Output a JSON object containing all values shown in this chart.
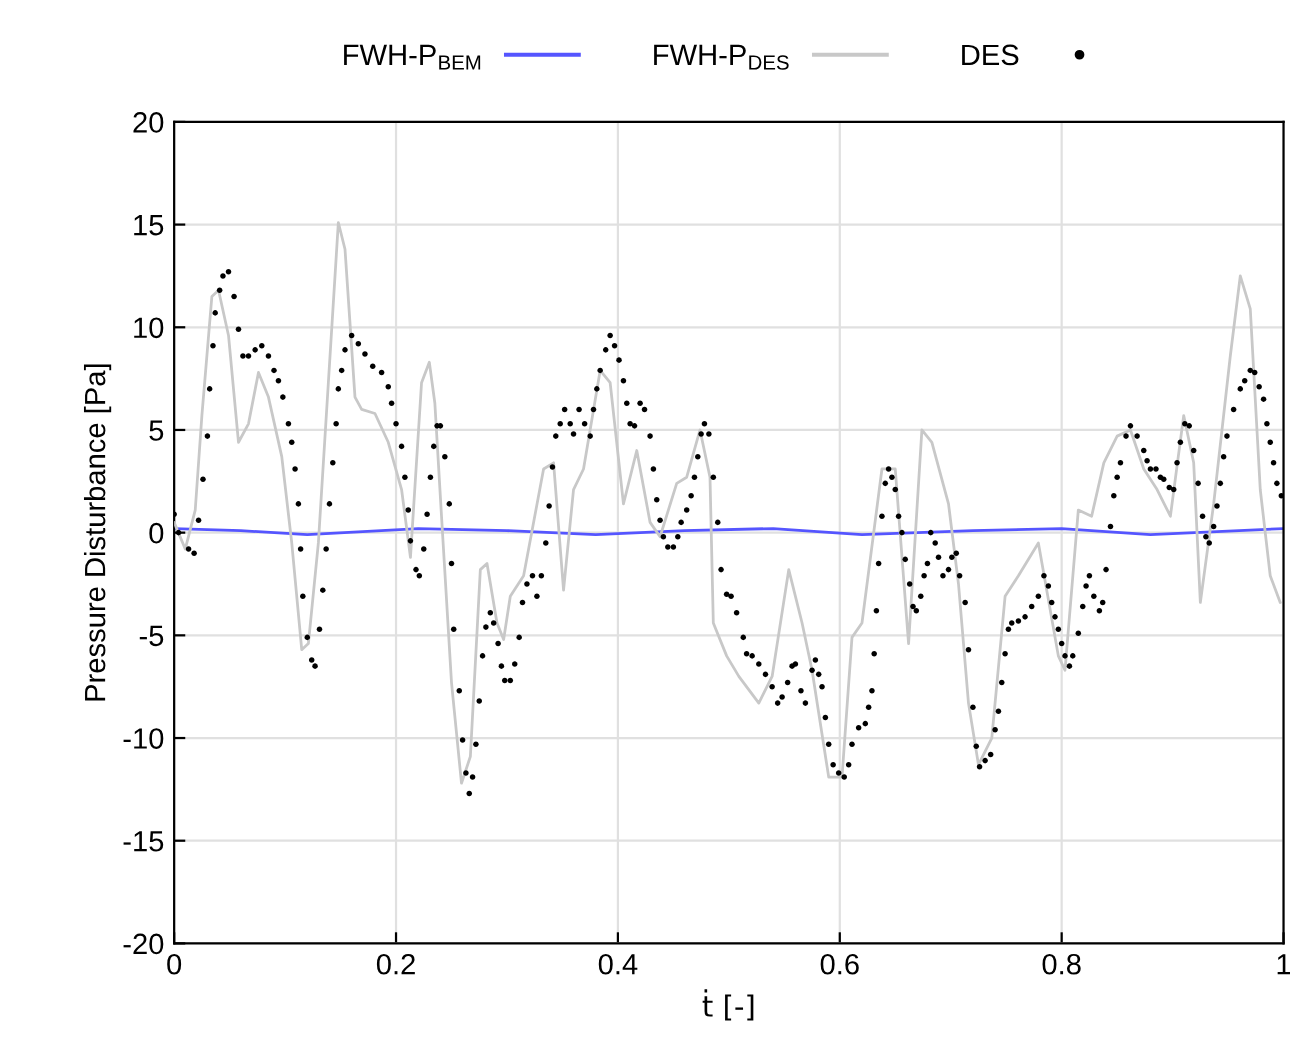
{
  "chart_data": {
    "type": "line",
    "xlabel": "ṫ [-]",
    "ylabel": "Pressure Disturbance [Pa]",
    "xlim": [
      0,
      1
    ],
    "xticks": [
      0,
      0.2,
      0.4,
      0.6,
      0.8,
      1
    ],
    "ylim": [
      -20,
      20
    ],
    "yticks": [
      -20,
      -15,
      -10,
      -5,
      0,
      5,
      10,
      15,
      20
    ],
    "grid": true,
    "legend": "top",
    "series": [
      {
        "name": "FWH-P$_{BEM}$",
        "color": "#5555ff",
        "line_style": "solid",
        "x": [
          0,
          0.06,
          0.12,
          0.22,
          0.3,
          0.38,
          0.46,
          0.54,
          0.62,
          0.72,
          0.8,
          0.88,
          0.96,
          1.0
        ],
        "values": [
          0.2,
          0.1,
          -0.1,
          0.2,
          0.1,
          -0.1,
          0.1,
          0.2,
          -0.1,
          0.1,
          0.2,
          -0.1,
          0.1,
          0.2
        ]
      },
      {
        "name": "FWH-P$_{DES}$",
        "color": "#c8c8c8",
        "line_style": "solid",
        "x": [
          0.0,
          0.01,
          0.019,
          0.025,
          0.034,
          0.04,
          0.049,
          0.058,
          0.067,
          0.076,
          0.085,
          0.097,
          0.106,
          0.115,
          0.121,
          0.13,
          0.139,
          0.148,
          0.154,
          0.163,
          0.169,
          0.181,
          0.193,
          0.205,
          0.213,
          0.223,
          0.23,
          0.235,
          0.241,
          0.25,
          0.259,
          0.267,
          0.276,
          0.282,
          0.291,
          0.297,
          0.303,
          0.315,
          0.333,
          0.342,
          0.351,
          0.36,
          0.369,
          0.384,
          0.393,
          0.405,
          0.417,
          0.429,
          0.438,
          0.453,
          0.462,
          0.474,
          0.483,
          0.486,
          0.498,
          0.509,
          0.527,
          0.539,
          0.554,
          0.566,
          0.575,
          0.59,
          0.602,
          0.611,
          0.62,
          0.638,
          0.65,
          0.662,
          0.674,
          0.683,
          0.698,
          0.707,
          0.716,
          0.725,
          0.737,
          0.749,
          0.761,
          0.779,
          0.797,
          0.803,
          0.815,
          0.827,
          0.838,
          0.85,
          0.862,
          0.874,
          0.886,
          0.898,
          0.91,
          0.919,
          0.925,
          0.937,
          0.952,
          0.961,
          0.97,
          0.979,
          0.988,
          0.997
        ],
        "values": [
          0.5,
          -0.8,
          1.1,
          5.7,
          11.5,
          11.8,
          9.6,
          4.4,
          5.3,
          7.8,
          6.6,
          3.7,
          -0.5,
          -5.7,
          -5.4,
          -0.5,
          7.3,
          15.1,
          13.8,
          6.6,
          6.0,
          5.8,
          4.4,
          2.1,
          -1.2,
          7.3,
          8.3,
          6.3,
          0.8,
          -7.3,
          -12.2,
          -10.9,
          -1.8,
          -1.5,
          -4.4,
          -5.2,
          -3.1,
          -2.1,
          3.1,
          3.4,
          -2.8,
          2.1,
          3.1,
          7.9,
          7.3,
          1.4,
          4.0,
          0.5,
          -0.2,
          2.4,
          2.7,
          5.0,
          2.7,
          -4.4,
          -6.0,
          -7.0,
          -8.3,
          -7.0,
          -1.8,
          -4.4,
          -6.7,
          -11.9,
          -11.9,
          -5.1,
          -4.4,
          3.1,
          3.1,
          -5.4,
          5.0,
          4.4,
          1.4,
          -2.5,
          -8.3,
          -11.3,
          -10.0,
          -3.1,
          -2.1,
          -0.5,
          -6.0,
          -6.7,
          1.1,
          0.8,
          3.4,
          4.7,
          5.0,
          3.1,
          2.1,
          0.8,
          5.7,
          3.4,
          -3.4,
          1.4,
          8.6,
          12.5,
          10.9,
          2.1,
          -2.1,
          -3.4
        ]
      },
      {
        "name": "DES",
        "type": "scatter",
        "color": "#000000",
        "marker": "circle",
        "x": [
          0.0,
          0.004,
          0.013,
          0.018,
          0.022,
          0.026,
          0.03,
          0.032,
          0.035,
          0.037,
          0.041,
          0.044,
          0.049,
          0.054,
          0.058,
          0.062,
          0.067,
          0.073,
          0.079,
          0.085,
          0.09,
          0.094,
          0.098,
          0.103,
          0.106,
          0.109,
          0.112,
          0.114,
          0.116,
          0.12,
          0.124,
          0.127,
          0.131,
          0.134,
          0.137,
          0.14,
          0.143,
          0.146,
          0.148,
          0.151,
          0.154,
          0.16,
          0.166,
          0.172,
          0.179,
          0.187,
          0.193,
          0.196,
          0.2,
          0.205,
          0.208,
          0.211,
          0.213,
          0.218,
          0.221,
          0.225,
          0.228,
          0.231,
          0.234,
          0.237,
          0.24,
          0.244,
          0.248,
          0.25,
          0.252,
          0.257,
          0.26,
          0.263,
          0.266,
          0.269,
          0.272,
          0.275,
          0.278,
          0.281,
          0.285,
          0.288,
          0.292,
          0.295,
          0.298,
          0.303,
          0.307,
          0.311,
          0.314,
          0.318,
          0.323,
          0.327,
          0.331,
          0.335,
          0.338,
          0.341,
          0.344,
          0.348,
          0.352,
          0.357,
          0.36,
          0.365,
          0.37,
          0.375,
          0.378,
          0.381,
          0.384,
          0.389,
          0.393,
          0.397,
          0.401,
          0.405,
          0.408,
          0.411,
          0.415,
          0.42,
          0.424,
          0.429,
          0.432,
          0.435,
          0.438,
          0.441,
          0.445,
          0.45,
          0.454,
          0.457,
          0.462,
          0.466,
          0.469,
          0.472,
          0.475,
          0.478,
          0.482,
          0.486,
          0.49,
          0.493,
          0.498,
          0.502,
          0.507,
          0.513,
          0.516,
          0.521,
          0.527,
          0.533,
          0.539,
          0.544,
          0.548,
          0.553,
          0.557,
          0.56,
          0.565,
          0.569,
          0.575,
          0.578,
          0.581,
          0.584,
          0.587,
          0.59,
          0.594,
          0.599,
          0.604,
          0.608,
          0.611,
          0.617,
          0.623,
          0.626,
          0.629,
          0.631,
          0.633,
          0.635,
          0.638,
          0.641,
          0.644,
          0.647,
          0.65,
          0.653,
          0.656,
          0.659,
          0.663,
          0.666,
          0.669,
          0.673,
          0.676,
          0.679,
          0.682,
          0.686,
          0.689,
          0.693,
          0.698,
          0.701,
          0.705,
          0.708,
          0.713,
          0.716,
          0.72,
          0.723,
          0.726,
          0.731,
          0.736,
          0.74,
          0.743,
          0.746,
          0.749,
          0.752,
          0.755,
          0.761,
          0.767,
          0.773,
          0.779,
          0.784,
          0.788,
          0.791,
          0.794,
          0.797,
          0.8,
          0.803,
          0.807,
          0.81,
          0.815,
          0.819,
          0.822,
          0.825,
          0.829,
          0.834,
          0.837,
          0.84,
          0.844,
          0.847,
          0.85,
          0.853,
          0.858,
          0.862,
          0.868,
          0.874,
          0.877,
          0.88,
          0.885,
          0.889,
          0.892,
          0.897,
          0.901,
          0.904,
          0.907,
          0.911,
          0.915,
          0.919,
          0.923,
          0.927,
          0.93,
          0.933,
          0.937,
          0.94,
          0.943,
          0.946,
          0.949,
          0.955,
          0.961,
          0.965,
          0.97,
          0.974,
          0.978,
          0.982,
          0.985,
          0.988,
          0.991,
          0.994,
          0.998
        ],
        "values": [
          0.9,
          0.0,
          -0.8,
          -1.0,
          0.6,
          2.6,
          4.7,
          7.0,
          9.1,
          10.7,
          11.8,
          12.5,
          12.7,
          11.5,
          9.9,
          8.6,
          8.6,
          8.9,
          9.1,
          8.6,
          7.9,
          7.4,
          6.6,
          5.3,
          4.4,
          3.1,
          1.4,
          -0.8,
          -3.1,
          -5.1,
          -6.2,
          -6.5,
          -4.7,
          -2.8,
          -0.8,
          1.4,
          3.4,
          5.3,
          7.0,
          7.9,
          8.9,
          9.6,
          9.2,
          8.7,
          8.1,
          7.8,
          7.1,
          6.3,
          5.3,
          4.2,
          2.7,
          1.1,
          -0.4,
          -1.8,
          -2.1,
          -0.8,
          0.9,
          2.7,
          4.2,
          5.2,
          5.2,
          3.7,
          1.4,
          -1.5,
          -4.7,
          -7.7,
          -10.1,
          -11.7,
          -12.7,
          -11.9,
          -10.3,
          -8.2,
          -6.0,
          -4.6,
          -3.9,
          -4.4,
          -5.4,
          -6.5,
          -7.2,
          -7.2,
          -6.4,
          -5.1,
          -3.4,
          -2.5,
          -2.1,
          -3.1,
          -2.1,
          -0.5,
          1.3,
          3.2,
          4.7,
          5.3,
          6.0,
          5.3,
          4.8,
          6.0,
          5.3,
          4.7,
          6.0,
          7.0,
          7.9,
          8.9,
          9.6,
          9.1,
          8.4,
          7.4,
          6.3,
          5.3,
          5.2,
          6.3,
          6.0,
          4.7,
          3.1,
          1.6,
          0.6,
          -0.2,
          -0.7,
          -0.7,
          -0.2,
          0.5,
          1.1,
          1.8,
          2.7,
          3.7,
          4.8,
          5.3,
          4.8,
          2.7,
          0.5,
          -1.8,
          -3.0,
          -3.1,
          -3.9,
          -5.1,
          -5.9,
          -6.0,
          -6.4,
          -6.9,
          -7.5,
          -8.3,
          -8.0,
          -7.3,
          -6.5,
          -6.4,
          -7.7,
          -8.3,
          -6.7,
          -6.2,
          -6.9,
          -7.5,
          -9.0,
          -10.3,
          -11.3,
          -11.7,
          -11.9,
          -11.3,
          -10.3,
          -9.5,
          -9.3,
          -8.5,
          -7.7,
          -5.9,
          -3.8,
          -1.5,
          0.8,
          2.4,
          3.1,
          2.7,
          2.1,
          0.8,
          0.0,
          -1.3,
          -2.5,
          -3.6,
          -3.8,
          -3.1,
          -2.1,
          -1.5,
          0.0,
          -0.5,
          -1.2,
          -2.1,
          -1.8,
          -1.2,
          -1.0,
          -2.1,
          -3.4,
          -5.7,
          -8.5,
          -10.4,
          -11.4,
          -11.1,
          -10.8,
          -9.6,
          -8.7,
          -7.3,
          -5.9,
          -4.7,
          -4.4,
          -4.3,
          -4.1,
          -3.6,
          -3.1,
          -2.1,
          -2.6,
          -3.4,
          -4.1,
          -4.7,
          -5.4,
          -6.0,
          -6.5,
          -6.0,
          -4.9,
          -3.6,
          -2.6,
          -2.1,
          -3.1,
          -3.8,
          -3.4,
          -1.8,
          0.3,
          1.8,
          2.7,
          3.4,
          4.7,
          5.2,
          4.7,
          4.0,
          3.5,
          3.1,
          3.1,
          2.7,
          2.6,
          2.2,
          2.1,
          3.4,
          4.4,
          5.3,
          5.2,
          4.0,
          2.4,
          0.8,
          -0.2,
          -0.5,
          0.3,
          1.3,
          2.4,
          3.7,
          4.7,
          6.0,
          7.0,
          7.4,
          7.9,
          7.8,
          7.1,
          6.5,
          5.3,
          4.4,
          3.4,
          2.4,
          1.8
        ]
      }
    ]
  }
}
